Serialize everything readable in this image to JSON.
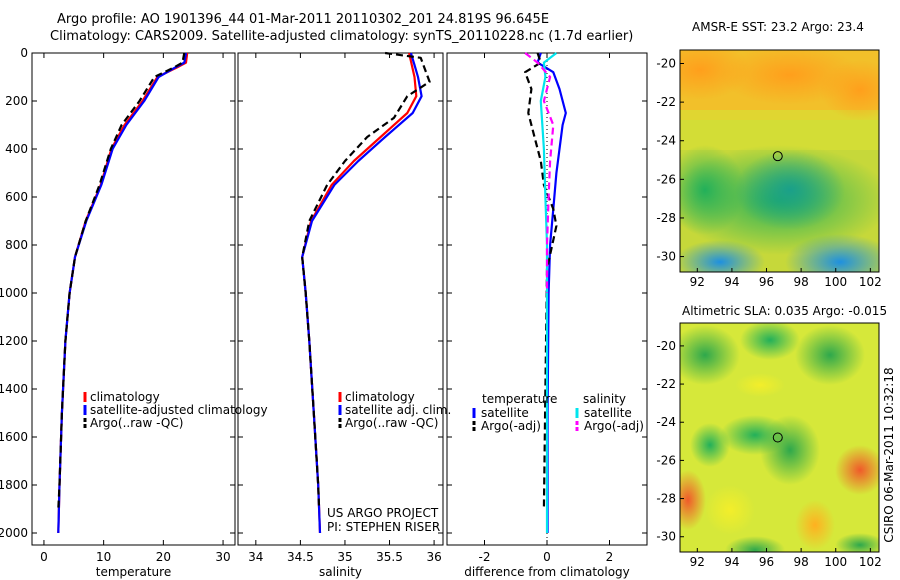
{
  "header": {
    "line1": "Argo profile: AO 1901396_44 01-Mar-2011 20110302_201 24.819S 96.645E",
    "line2": "Climatology: CARS2009. Satellite-adjusted climatology: synTS_20110228.nc (1.7d earlier)"
  },
  "colors": {
    "clim": "#ff0000",
    "sat": "#0000ff",
    "argo": "#000000",
    "sal_sat": "#00e5ee",
    "sal_argo": "#ff00ff"
  },
  "chart_data": [
    {
      "id": "temperature",
      "type": "line",
      "xlabel": "temperature",
      "xlim": [
        -2,
        32
      ],
      "xticks": [
        0,
        10,
        20,
        30
      ],
      "ylim": [
        2050,
        0
      ],
      "yticks": [
        0,
        200,
        400,
        600,
        800,
        1000,
        1200,
        1400,
        1600,
        1800,
        2000
      ],
      "legend": [
        "climatology",
        "satellite-adjusted climatology",
        "Argo(..raw -QC)"
      ],
      "legend_position": "lower-right",
      "series": [
        {
          "name": "climatology",
          "color": "#ff0000",
          "dash": "solid",
          "x": [
            24.0,
            23.8,
            22.3,
            19.0,
            16.5,
            13.5,
            11.3,
            9.5,
            7.0,
            5.2,
            4.3,
            3.6,
            3.0,
            2.6,
            2.4
          ],
          "depth": [
            0,
            40,
            60,
            100,
            200,
            300,
            400,
            550,
            700,
            850,
            1000,
            1200,
            1500,
            1800,
            2000
          ]
        },
        {
          "name": "satellite-adjusted climatology",
          "color": "#0000ff",
          "dash": "solid",
          "x": [
            23.8,
            23.5,
            22.0,
            19.2,
            16.8,
            13.8,
            11.5,
            9.6,
            7.1,
            5.2,
            4.3,
            3.6,
            3.0,
            2.6,
            2.4
          ],
          "depth": [
            0,
            40,
            60,
            100,
            200,
            300,
            400,
            550,
            700,
            850,
            1000,
            1200,
            1500,
            1800,
            2000
          ]
        },
        {
          "name": "Argo(..raw -QC)",
          "color": "#000000",
          "dash": "dashed",
          "x": [
            23.5,
            23.2,
            21.8,
            18.5,
            16.0,
            13.0,
            11.2,
            9.3,
            7.0,
            5.2,
            4.3,
            3.6,
            3.0,
            2.6,
            2.4
          ],
          "depth": [
            0,
            40,
            60,
            100,
            200,
            300,
            400,
            550,
            700,
            850,
            1000,
            1200,
            1500,
            1800,
            1900
          ]
        }
      ]
    },
    {
      "id": "salinity",
      "type": "line",
      "xlabel": "salinity",
      "xlim": [
        33.8,
        36.1
      ],
      "xticks": [
        34,
        34.5,
        35,
        35.5,
        36
      ],
      "ylim": [
        2050,
        0
      ],
      "legend": [
        "climatology",
        "satellite adj. clim.",
        "Argo(..raw -QC)"
      ],
      "legend_position": "lower-right",
      "note_line1": "US ARGO PROJECT",
      "note_line2": "PI: STEPHEN RISER",
      "series": [
        {
          "name": "climatology",
          "color": "#ff0000",
          "dash": "solid",
          "x": [
            35.72,
            35.75,
            35.78,
            35.8,
            35.7,
            35.4,
            35.1,
            34.85,
            34.62,
            34.52,
            34.56,
            34.6,
            34.65,
            34.7,
            34.72
          ],
          "depth": [
            0,
            50,
            100,
            180,
            250,
            350,
            450,
            550,
            700,
            850,
            1000,
            1200,
            1500,
            1800,
            2000
          ]
        },
        {
          "name": "satellite adj. clim.",
          "color": "#0000ff",
          "dash": "solid",
          "x": [
            35.74,
            35.78,
            35.82,
            35.86,
            35.76,
            35.45,
            35.15,
            34.88,
            34.63,
            34.52,
            34.56,
            34.6,
            34.65,
            34.7,
            34.72
          ],
          "depth": [
            0,
            50,
            100,
            180,
            250,
            350,
            450,
            550,
            700,
            850,
            1000,
            1200,
            1500,
            1800,
            2000
          ]
        },
        {
          "name": "Argo(..raw -QC)",
          "color": "#000000",
          "dash": "dashed",
          "x": [
            35.45,
            35.85,
            35.95,
            35.7,
            35.55,
            35.25,
            35.0,
            34.8,
            34.6,
            34.52,
            34.56,
            34.6,
            34.65,
            34.7,
            34.71
          ],
          "depth": [
            0,
            20,
            120,
            180,
            270,
            350,
            450,
            550,
            700,
            850,
            1000,
            1200,
            1500,
            1800,
            1900
          ]
        }
      ]
    },
    {
      "id": "difference",
      "type": "line",
      "xlabel": "difference from climatology",
      "xlim": [
        -3.2,
        3.2
      ],
      "xticks": [
        -2,
        0,
        2
      ],
      "ylim": [
        2050,
        0
      ],
      "legend_temp_title": "temperature",
      "legend_sal_title": "salinity",
      "legend": [
        "satellite",
        "Argo(-adj)",
        "satellite",
        "Argo(-adj)"
      ],
      "legend_position": "lower-center",
      "series": [
        {
          "name": "temperature satellite",
          "color": "#0000ff",
          "dash": "solid",
          "x": [
            -0.2,
            -0.3,
            0.2,
            0.4,
            0.6,
            0.5,
            0.4,
            0.3,
            0.2,
            0.1,
            0.05,
            0.02,
            0.02
          ],
          "depth": [
            0,
            40,
            80,
            150,
            250,
            300,
            400,
            500,
            650,
            800,
            1000,
            1500,
            2000
          ]
        },
        {
          "name": "temperature Argo(-adj)",
          "color": "#000000",
          "dash": "dashed",
          "x": [
            -0.3,
            -0.2,
            -0.7,
            -0.5,
            -0.6,
            -0.4,
            -0.2,
            -0.1,
            0.2,
            0.3,
            0.0,
            -0.05,
            -0.1
          ],
          "depth": [
            0,
            40,
            80,
            150,
            250,
            350,
            450,
            550,
            650,
            720,
            900,
            1400,
            1900
          ]
        },
        {
          "name": "salinity satellite",
          "color": "#00e5ee",
          "dash": "solid",
          "x": [
            0.3,
            -0.1,
            -0.05,
            -0.2,
            -0.1,
            -0.05,
            0.0,
            0.0,
            0.0,
            0.0
          ],
          "depth": [
            0,
            40,
            100,
            200,
            400,
            600,
            800,
            1200,
            1600,
            2000
          ]
        },
        {
          "name": "salinity Argo(-adj)",
          "color": "#ff00ff",
          "dash": "dashed",
          "x": [
            -0.7,
            -0.3,
            0.1,
            -0.1,
            0.2,
            0.1,
            0.05,
            0.0,
            0.0
          ],
          "depth": [
            0,
            40,
            100,
            200,
            300,
            450,
            600,
            800,
            1000
          ]
        }
      ]
    }
  ],
  "maps": [
    {
      "id": "sst",
      "title": "AMSR-E SST: 23.2 Argo: 23.4",
      "xticks": [
        92,
        94,
        96,
        98,
        100,
        102
      ],
      "yticks": [
        -20,
        -22,
        -24,
        -26,
        -28,
        -30
      ],
      "xlim": [
        91,
        102.5
      ],
      "ylim": [
        -30.8,
        -19.3
      ],
      "marker": {
        "lon": 96.65,
        "lat": -24.8
      }
    },
    {
      "id": "sla",
      "title": "Altimetric SLA: 0.035 Argo: -0.015",
      "xticks": [
        92,
        94,
        96,
        98,
        100,
        102
      ],
      "yticks": [
        -20,
        -22,
        -24,
        -26,
        -28,
        -30
      ],
      "xlim": [
        91,
        102.5
      ],
      "ylim": [
        -30.8,
        -18.8
      ],
      "marker": {
        "lon": 96.65,
        "lat": -24.8
      }
    }
  ],
  "footer_stamp": "CSIRO 06-Mar-2011 10:32:18"
}
